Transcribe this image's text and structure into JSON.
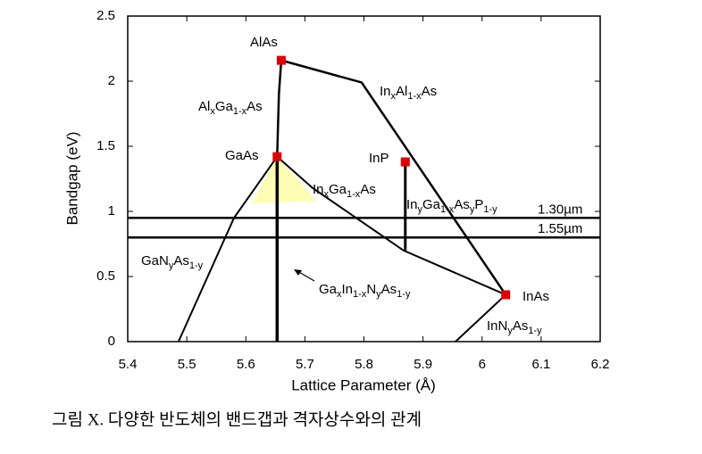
{
  "chart_data": {
    "type": "line",
    "xlabel": "Lattice Parameter (Å)",
    "ylabel": "Bandgap (eV)",
    "xlim": [
      5.4,
      6.2
    ],
    "xticks": [
      5.4,
      5.5,
      5.6,
      5.7,
      5.8,
      5.9,
      6,
      6.1,
      6.2
    ],
    "ylim": [
      0,
      2.5
    ],
    "yticks": [
      0,
      0.5,
      1,
      1.5,
      2,
      2.5
    ],
    "shaded_region": {
      "x": [
        5.653,
        5.61,
        5.72
      ],
      "y": [
        1.42,
        1.06,
        1.08
      ],
      "color": "#fdfdb4"
    },
    "series": [
      {
        "x": [
          5.653,
          5.656,
          5.66
        ],
        "values": [
          1.42,
          1.9,
          2.16
        ],
        "color": "#000000",
        "width": 2.5
      },
      {
        "x": [
          5.66,
          5.796,
          6.04
        ],
        "values": [
          2.16,
          1.99,
          0.36
        ],
        "color": "#000000",
        "width": 2.5
      },
      {
        "x": [
          5.653,
          5.713,
          5.867,
          6.04
        ],
        "values": [
          1.42,
          1.18,
          0.7,
          0.36
        ],
        "color": "#000000",
        "width": 2
      },
      {
        "x": [
          5.87,
          5.87
        ],
        "values": [
          1.35,
          0.7
        ],
        "color": "#000000",
        "width": 3
      },
      {
        "x": [
          5.653,
          5.58,
          5.486
        ],
        "values": [
          1.42,
          0.95,
          0
        ],
        "color": "#000000",
        "width": 2
      },
      {
        "x": [
          6.04,
          5.955
        ],
        "values": [
          0.36,
          0
        ],
        "color": "#000000",
        "width": 2
      },
      {
        "x": [
          5.653,
          5.653
        ],
        "values": [
          1.42,
          0
        ],
        "color": "#000000",
        "width": 3.5
      }
    ],
    "hlines": [
      {
        "value": 0.95,
        "label": "1.30µm"
      },
      {
        "value": 0.8,
        "label": "1.55µm"
      }
    ],
    "points": [
      {
        "name": "AlAs",
        "x": 5.66,
        "y": 2.16,
        "color": "#e00000"
      },
      {
        "name": "GaAs",
        "x": 5.653,
        "y": 1.42,
        "color": "#e00000"
      },
      {
        "name": "InP",
        "x": 5.87,
        "y": 1.38,
        "color": "#e00000"
      },
      {
        "name": "InAs",
        "x": 6.04,
        "y": 0.36,
        "color": "#e00000"
      }
    ],
    "annotations": [
      {
        "parts": [
          "Al",
          "x",
          "Ga",
          "1-x",
          "As"
        ]
      },
      {
        "parts": [
          "In",
          "x",
          "Al",
          "1-x",
          "As"
        ]
      },
      {
        "parts": [
          "In",
          "x",
          "Ga",
          "1-x",
          "As"
        ]
      },
      {
        "parts": [
          "In",
          "y",
          "Ga",
          "1-x",
          "As",
          "y",
          "P",
          "1-y"
        ]
      },
      {
        "parts": [
          "GaN",
          "y",
          "As",
          "1-y"
        ]
      },
      {
        "parts": [
          "Ga",
          "x",
          "In",
          "1-x",
          "N",
          "y",
          "As",
          "1-y"
        ]
      },
      {
        "parts": [
          "InN",
          "y",
          "As",
          "1-y"
        ]
      }
    ]
  },
  "caption": "그림 X. 다양한 반도체의 밴드갭과 격자상수와의 관계"
}
